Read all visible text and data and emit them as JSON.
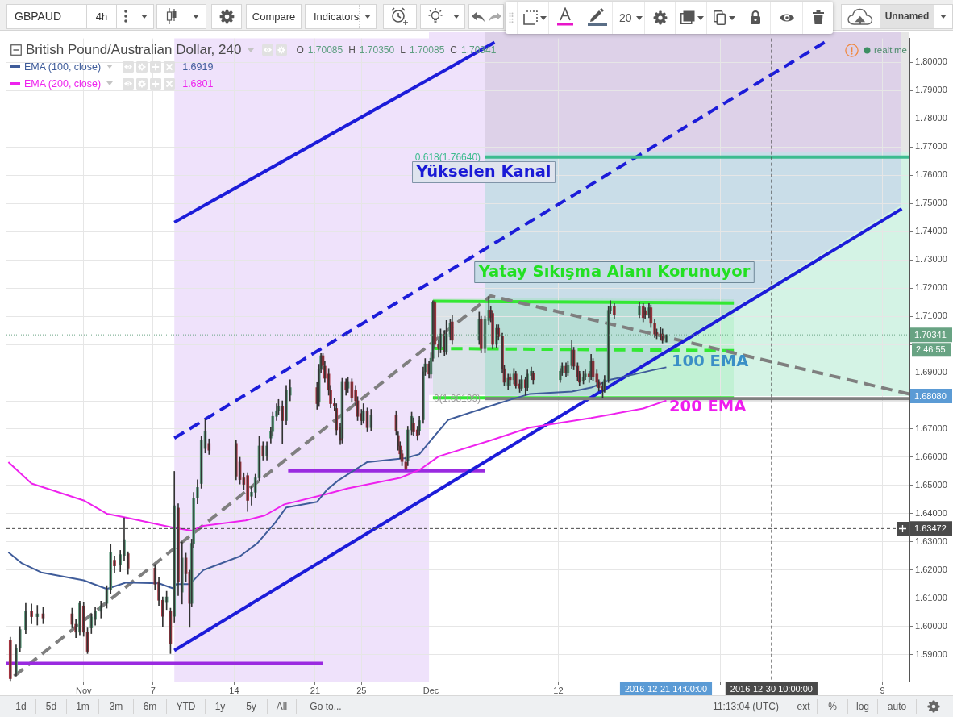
{
  "chart_data": [
    {
      "type": "other",
      "annotations": [
        "GBPAUD",
        "4h",
        "Compare",
        "Indicators",
        "20",
        "Unnamed"
      ]
    },
    {
      "type": "candlestick",
      "title": "British Pound/Australian Dollar, 240",
      "subtitle": "O 1.70085 H 1.70350 L 1.70085 C 1.70341",
      "x": [
        "2016-10-25T16:00",
        "2016-10-26T04:00",
        "2016-10-26T12:00",
        "2016-10-27T00:00",
        "2016-10-27T12:00",
        "2016-10-28T00:00",
        "2016-10-28T12:00",
        "2016-10-31T00:00",
        "2016-10-31T08:00",
        "2016-10-31T16:00",
        "2016-11-01T00:00",
        "2016-11-01T08:00",
        "2016-11-01T16:00",
        "2016-11-02T00:00",
        "2016-11-02T12:00",
        "2016-11-03T00:00",
        "2016-11-03T08:00",
        "2016-11-03T16:00",
        "2016-11-04T04:00",
        "2016-11-04T12:00",
        "2016-11-04T20:00",
        "2016-11-07T04:00",
        "2016-11-07T12:00",
        "2016-11-07T20:00",
        "2016-11-08T04:00",
        "2016-11-08T12:00",
        "2016-11-08T20:00",
        "2016-11-09T04:00",
        "2016-11-09T12:00",
        "2016-11-09T20:00",
        "2016-11-10T04:00",
        "2016-11-10T08:00",
        "2016-11-10T12:00",
        "2016-11-10T20:00",
        "2016-11-11T04:00",
        "2016-11-11T12:00",
        "2016-11-11T20:00",
        "2016-11-14T04:00",
        "2016-11-14T12:00",
        "2016-11-14T20:00",
        "2016-11-15T04:00",
        "2016-11-15T12:00",
        "2016-11-15T20:00",
        "2016-11-16T04:00",
        "2016-11-16T12:00",
        "2016-11-16T20:00",
        "2016-11-17T04:00",
        "2016-11-17T08:00",
        "2016-11-17T16:00",
        "2016-11-17T20:00",
        "2016-11-18T04:00",
        "2016-11-18T12:00",
        "2016-11-18T20:00",
        "2016-11-21T04:00",
        "2016-11-21T08:00",
        "2016-11-21T12:00",
        "2016-11-21T16:00",
        "2016-11-21T20:00",
        "2016-11-22T04:00",
        "2016-11-22T08:00",
        "2016-11-22T16:00",
        "2016-11-22T20:00",
        "2016-11-23T04:00",
        "2016-11-23T08:00",
        "2016-11-23T16:00",
        "2016-11-23T20:00",
        "2016-11-24T04:00",
        "2016-11-24T12:00",
        "2016-11-24T16:00",
        "2016-11-25T00:00",
        "2016-11-25T04:00",
        "2016-11-25T12:00",
        "2016-11-25T20:00",
        "2016-11-28T00:00",
        "2016-11-28T04:00",
        "2016-11-28T08:00",
        "2016-11-28T12:00",
        "2016-11-28T20:00",
        "2016-11-29T00:00",
        "2016-11-29T08:00",
        "2016-11-29T12:00",
        "2016-11-29T20:00",
        "2016-11-30T00:00",
        "2016-11-30T08:00",
        "2016-11-30T12:00",
        "2016-11-30T20:00",
        "2016-12-01T00:00",
        "2016-12-01T04:00",
        "2016-12-01T08:00",
        "2016-12-01T16:00",
        "2016-12-01T20:00",
        "2016-12-02T04:00",
        "2016-12-02T08:00",
        "2016-12-02T16:00",
        "2016-12-02T20:00",
        "2016-12-05T04:00",
        "2016-12-05T08:00",
        "2016-12-05T16:00",
        "2016-12-06T00:00",
        "2016-12-06T04:00",
        "2016-12-06T08:00",
        "2016-12-06T16:00",
        "2016-12-06T20:00",
        "2016-12-07T04:00",
        "2016-12-07T08:00",
        "2016-12-07T16:00",
        "2016-12-07T20:00",
        "2016-12-08T04:00",
        "2016-12-08T08:00",
        "2016-12-08T16:00",
        "2016-12-08T20:00",
        "2016-12-09T04:00",
        "2016-12-09T08:00",
        "2016-12-09T16:00",
        "2016-12-09T20:00",
        "2016-12-12T04:00",
        "2016-12-12T08:00",
        "2016-12-12T16:00",
        "2016-12-12T20:00",
        "2016-12-13T04:00",
        "2016-12-13T08:00",
        "2016-12-13T16:00",
        "2016-12-13T20:00",
        "2016-12-14T04:00",
        "2016-12-14T08:00",
        "2016-12-14T16:00",
        "2016-12-14T20:00",
        "2016-12-15T00:00",
        "2016-12-15T08:00",
        "2016-12-15T12:00",
        "2016-12-15T20:00",
        "2016-12-16T00:00",
        "2016-12-16T08:00",
        "2016-12-16T12:00",
        "2016-12-16T20:00",
        "2016-12-19T00:00",
        "2016-12-19T08:00",
        "2016-12-19T12:00",
        "2016-12-19T20:00",
        "2016-12-20T00:00",
        "2016-12-20T08:00",
        "2016-12-20T12:00",
        "2016-12-20T20:00",
        "2016-12-21T00:00",
        "2016-12-21T08:00"
      ],
      "ohlc": [
        [
          1.5952,
          1.5962,
          1.5808,
          1.5815
        ],
        [
          1.5838,
          1.5935,
          1.5825,
          1.5923
        ],
        [
          1.5923,
          1.6,
          1.591,
          1.5989
        ],
        [
          1.5989,
          1.6082,
          1.5975,
          1.6054
        ],
        [
          1.6054,
          1.608,
          1.601,
          1.6035
        ],
        [
          1.6035,
          1.6075,
          1.6005,
          1.6045
        ],
        [
          1.6045,
          1.607,
          1.601,
          1.603
        ],
        [
          1.6045,
          1.6065,
          1.5995,
          1.6008
        ],
        [
          1.6008,
          1.6025,
          1.596,
          1.598
        ],
        [
          1.598,
          1.609,
          1.597,
          1.6082
        ],
        [
          1.6073,
          1.6085,
          1.5965,
          1.598
        ],
        [
          1.598,
          1.5995,
          1.5904,
          1.5912
        ],
        [
          1.5995,
          1.6045,
          1.5975,
          1.6035
        ],
        [
          1.6025,
          1.607,
          1.6005,
          1.6054
        ],
        [
          1.6054,
          1.609,
          1.603,
          1.6073
        ],
        [
          1.6082,
          1.6145,
          1.6065,
          1.613
        ],
        [
          1.613,
          1.6291,
          1.6115,
          1.6263
        ],
        [
          1.6235,
          1.625,
          1.619,
          1.6215
        ],
        [
          1.622,
          1.627,
          1.6195,
          1.6255
        ],
        [
          1.6252,
          1.6385,
          1.6235,
          1.6308
        ],
        [
          1.6258,
          1.6265,
          1.6185,
          1.6207
        ],
        [
          1.6207,
          1.622,
          1.613,
          1.615
        ],
        [
          1.6159,
          1.6175,
          1.6075,
          1.6093
        ],
        [
          1.6093,
          1.6105,
          1.6,
          1.6036
        ],
        [
          1.6085,
          1.6125,
          1.606,
          1.6105
        ],
        [
          1.6054,
          1.6065,
          1.5904,
          1.594
        ],
        [
          1.6036,
          1.655,
          1.6015,
          1.6428
        ],
        [
          1.642,
          1.6435,
          1.611,
          1.6159
        ],
        [
          1.6122,
          1.63,
          1.608,
          1.6243
        ],
        [
          1.6243,
          1.626,
          1.616,
          1.6187
        ],
        [
          1.6193,
          1.62,
          1.5997,
          1.6082
        ],
        [
          1.6082,
          1.631,
          1.607,
          1.6295
        ],
        [
          1.6295,
          1.6475,
          1.628,
          1.6456
        ],
        [
          1.6456,
          1.652,
          1.6435,
          1.6493
        ],
        [
          1.6507,
          1.6675,
          1.649,
          1.666
        ],
        [
          1.6631,
          1.6734,
          1.6615,
          1.6691
        ],
        [
          1.6649,
          1.6665,
          1.661,
          1.6625
        ],
        [
          1.6649,
          1.666,
          1.652,
          1.6533
        ],
        [
          1.6583,
          1.66,
          1.6505,
          1.6521
        ],
        [
          1.6527,
          1.6545,
          1.6485,
          1.6504
        ],
        [
          1.6535,
          1.6545,
          1.6408,
          1.6447
        ],
        [
          1.6462,
          1.6495,
          1.643,
          1.6476
        ],
        [
          1.6476,
          1.654,
          1.6455,
          1.6527
        ],
        [
          1.6527,
          1.6675,
          1.6515,
          1.664
        ],
        [
          1.664,
          1.6655,
          1.659,
          1.6606
        ],
        [
          1.6606,
          1.6655,
          1.659,
          1.664
        ],
        [
          1.6668,
          1.6705,
          1.665,
          1.6691
        ],
        [
          1.6691,
          1.676,
          1.6675,
          1.6745
        ],
        [
          1.6745,
          1.679,
          1.673,
          1.6765
        ],
        [
          1.6765,
          1.6805,
          1.675,
          1.6782
        ],
        [
          1.6782,
          1.68,
          1.6649,
          1.673
        ],
        [
          1.673,
          1.6855,
          1.6715,
          1.6838
        ],
        [
          1.682,
          1.6875,
          1.68,
          1.6847
        ],
        [
          1.6847,
          1.6865,
          1.677,
          1.679
        ],
        [
          1.6795,
          1.693,
          1.678,
          1.6914
        ],
        [
          1.6914,
          1.6968,
          1.69,
          1.696
        ],
        [
          1.696,
          1.6968,
          1.691,
          1.6925
        ],
        [
          1.6923,
          1.694,
          1.6865,
          1.688
        ],
        [
          1.6895,
          1.6915,
          1.682,
          1.6838
        ],
        [
          1.6838,
          1.6855,
          1.6775,
          1.679
        ],
        [
          1.679,
          1.681,
          1.6765,
          1.6782
        ],
        [
          1.6773,
          1.679,
          1.668,
          1.6697
        ],
        [
          1.6706,
          1.672,
          1.6645,
          1.666
        ],
        [
          1.6668,
          1.688,
          1.665,
          1.6866
        ],
        [
          1.6866,
          1.6878,
          1.682,
          1.6838
        ],
        [
          1.6845,
          1.6885,
          1.683,
          1.6866
        ],
        [
          1.6866,
          1.6878,
          1.6795,
          1.681
        ],
        [
          1.6838,
          1.6855,
          1.6785,
          1.68
        ],
        [
          1.68,
          1.6815,
          1.673,
          1.6745
        ],
        [
          1.6755,
          1.677,
          1.6715,
          1.673
        ],
        [
          1.673,
          1.679,
          1.672,
          1.6765
        ],
        [
          1.6762,
          1.6775,
          1.669,
          1.6705
        ],
        [
          1.6705,
          1.677,
          1.6695,
          1.675
        ],
        [
          1.675,
          1.6765,
          1.668,
          1.6695
        ],
        [
          1.6677,
          1.669,
          1.6625,
          1.664
        ],
        [
          1.664,
          1.6655,
          1.6595,
          1.6612
        ],
        [
          1.6612,
          1.6625,
          1.657,
          1.6585
        ],
        [
          1.6583,
          1.66,
          1.6555,
          1.6561
        ],
        [
          1.6589,
          1.671,
          1.657,
          1.6697
        ],
        [
          1.6697,
          1.676,
          1.668,
          1.6745
        ],
        [
          1.672,
          1.674,
          1.6675,
          1.669
        ],
        [
          1.6697,
          1.671,
          1.666,
          1.6678
        ],
        [
          1.6695,
          1.6745,
          1.668,
          1.673
        ],
        [
          1.6733,
          1.692,
          1.672,
          1.6903
        ],
        [
          1.6903,
          1.695,
          1.689,
          1.6931
        ],
        [
          1.6931,
          1.694,
          1.688,
          1.6895
        ],
        [
          1.6895,
          1.697,
          1.688,
          1.6951
        ],
        [
          1.6951,
          1.7155,
          1.694,
          1.715
        ],
        [
          1.715,
          1.7155,
          1.6985,
          1.7
        ],
        [
          1.7,
          1.7015,
          1.6955,
          1.6985
        ],
        [
          1.6985,
          1.7055,
          1.697,
          1.7037
        ],
        [
          1.7037,
          1.705,
          1.696,
          1.6975
        ],
        [
          1.6975,
          1.7085,
          1.6965,
          1.7037
        ],
        [
          1.7028,
          1.709,
          1.7015,
          1.7074
        ],
        [
          1.708,
          1.7105,
          1.7,
          1.7015
        ],
        [
          1.7015,
          1.7115,
          1.7,
          1.709
        ],
        [
          1.709,
          1.71,
          1.697,
          1.6985
        ],
        [
          1.6985,
          1.71,
          1.697,
          1.709
        ],
        [
          1.7085,
          1.717,
          1.707,
          1.7122
        ],
        [
          1.7122,
          1.7135,
          1.708,
          1.7095
        ],
        [
          1.711,
          1.712,
          1.6985,
          1.7
        ],
        [
          1.7,
          1.707,
          1.699,
          1.7057
        ],
        [
          1.7057,
          1.707,
          1.7015,
          1.7028
        ],
        [
          1.7028,
          1.704,
          1.69,
          1.6914
        ],
        [
          1.6914,
          1.6925,
          1.6855,
          1.6866
        ],
        [
          1.6855,
          1.6895,
          1.684,
          1.688
        ],
        [
          1.6885,
          1.6895,
          1.6855,
          1.6875
        ],
        [
          1.6875,
          1.6915,
          1.686,
          1.6895
        ],
        [
          1.6895,
          1.6905,
          1.6845,
          1.6855
        ],
        [
          1.686,
          1.6875,
          1.683,
          1.6845
        ],
        [
          1.6845,
          1.689,
          1.6835,
          1.6875
        ],
        [
          1.6875,
          1.6885,
          1.682,
          1.6847
        ],
        [
          1.6847,
          1.691,
          1.6835,
          1.6895
        ],
        [
          1.689,
          1.692,
          1.6875,
          1.6905
        ],
        [
          1.6898,
          1.6905,
          1.686,
          1.6875
        ],
        [
          1.6875,
          1.6915,
          1.6865,
          1.6905
        ],
        [
          1.69,
          1.6935,
          1.689,
          1.6923
        ],
        [
          1.6923,
          1.6935,
          1.6885,
          1.69
        ],
        [
          1.69,
          1.694,
          1.689,
          1.6925
        ],
        [
          1.6925,
          1.7015,
          1.6915,
          1.698
        ],
        [
          1.698,
          1.699,
          1.691,
          1.6923
        ],
        [
          1.6923,
          1.6935,
          1.687,
          1.6885
        ],
        [
          1.6895,
          1.6905,
          1.6855,
          1.6866
        ],
        [
          1.687,
          1.6905,
          1.686,
          1.6885
        ],
        [
          1.6885,
          1.691,
          1.6875,
          1.6895
        ],
        [
          1.6895,
          1.6905,
          1.6865,
          1.6885
        ],
        [
          1.6887,
          1.6965,
          1.6875,
          1.6942
        ],
        [
          1.6942,
          1.695,
          1.687,
          1.6885
        ],
        [
          1.6895,
          1.691,
          1.685,
          1.6866
        ],
        [
          1.6866,
          1.6875,
          1.6835,
          1.6847
        ],
        [
          1.6852,
          1.6865,
          1.6812,
          1.6838
        ],
        [
          1.6842,
          1.689,
          1.683,
          1.6875
        ],
        [
          1.6875,
          1.7135,
          1.6865,
          1.7121
        ],
        [
          1.7121,
          1.7155,
          1.711,
          1.7135
        ],
        [
          1.7135,
          1.7145,
          1.709,
          1.7105
        ],
        [
          1.7105,
          1.715,
          1.7095,
          1.7135
        ],
        [
          1.7135,
          1.7145,
          1.708,
          1.7095
        ],
        [
          1.712,
          1.713,
          1.709,
          1.7105
        ],
        [
          1.7105,
          1.7145,
          1.7095,
          1.713
        ],
        [
          1.713,
          1.714,
          1.706,
          1.7075
        ],
        [
          1.7075,
          1.709,
          1.7025,
          1.7037
        ],
        [
          1.7042,
          1.7055,
          1.702,
          1.7032
        ],
        [
          1.7028,
          1.706,
          1.7015,
          1.7037
        ],
        [
          1.7037,
          1.7055,
          1.7005,
          1.7014
        ],
        [
          1.70085,
          1.7035,
          1.70085,
          1.70341
        ]
      ],
      "color": "#333333",
      "colors": [
        "#a8343f",
        "#5b9b7c",
        "#5b9b7c",
        "#5b9b7c",
        "#a8343f",
        "#5b9b7c",
        "#a8343f",
        "#a8343f",
        "#a8343f",
        "#5b9b7c",
        "#a8343f",
        "#a8343f",
        "#5b9b7c",
        "#5b9b7c",
        "#5b9b7c",
        "#5b9b7c",
        "#5b9b7c",
        "#a8343f",
        "#5b9b7c",
        "#5b9b7c",
        "#a8343f",
        "#a8343f",
        "#a8343f",
        "#a8343f",
        "#5b9b7c",
        "#a8343f",
        "#5b9b7c",
        "#a8343f",
        "#5b9b7c",
        "#a8343f",
        "#a8343f",
        "#5b9b7c",
        "#5b9b7c",
        "#5b9b7c",
        "#5b9b7c",
        "#5b9b7c",
        "#a8343f",
        "#a8343f",
        "#a8343f",
        "#a8343f",
        "#a8343f",
        "#5b9b7c",
        "#5b9b7c",
        "#5b9b7c",
        "#a8343f",
        "#5b9b7c",
        "#5b9b7c",
        "#5b9b7c",
        "#5b9b7c",
        "#5b9b7c",
        "#a8343f",
        "#5b9b7c",
        "#5b9b7c",
        "#a8343f",
        "#5b9b7c",
        "#5b9b7c",
        "#a8343f",
        "#a8343f",
        "#a8343f",
        "#a8343f",
        "#a8343f",
        "#a8343f",
        "#a8343f",
        "#5b9b7c",
        "#a8343f",
        "#5b9b7c",
        "#a8343f",
        "#a8343f",
        "#a8343f",
        "#a8343f",
        "#5b9b7c",
        "#a8343f",
        "#5b9b7c",
        "#a8343f",
        "#a8343f",
        "#a8343f",
        "#a8343f",
        "#a8343f",
        "#5b9b7c",
        "#5b9b7c",
        "#a8343f",
        "#a8343f",
        "#5b9b7c",
        "#5b9b7c",
        "#5b9b7c",
        "#a8343f",
        "#5b9b7c",
        "#5b9b7c",
        "#a8343f",
        "#a8343f",
        "#5b9b7c",
        "#a8343f",
        "#5b9b7c",
        "#5b9b7c",
        "#a8343f",
        "#5b9b7c",
        "#a8343f",
        "#5b9b7c",
        "#5b9b7c",
        "#a8343f",
        "#a8343f",
        "#5b9b7c",
        "#a8343f",
        "#a8343f",
        "#a8343f",
        "#5b9b7c",
        "#a8343f",
        "#5b9b7c",
        "#a8343f",
        "#a8343f",
        "#5b9b7c",
        "#a8343f",
        "#5b9b7c",
        "#5b9b7c",
        "#a8343f",
        "#5b9b7c",
        "#5b9b7c",
        "#a8343f",
        "#5b9b7c",
        "#5b9b7c",
        "#a8343f",
        "#a8343f",
        "#a8343f",
        "#5b9b7c",
        "#5b9b7c",
        "#a8343f",
        "#5b9b7c",
        "#a8343f",
        "#a8343f",
        "#a8343f",
        "#a8343f",
        "#5b9b7c",
        "#5b9b7c",
        "#5b9b7c",
        "#a8343f",
        "#5b9b7c",
        "#a8343f",
        "#a8343f",
        "#5b9b7c",
        "#a8343f",
        "#a8343f",
        "#a8343f",
        "#5b9b7c",
        "#a8343f",
        "#5b9b7c"
      ],
      "xlim": [
        "2016-10-25T08:00",
        "2017-01-11T08:00"
      ],
      "xticks": [
        {
          "value": "2016-11-01",
          "label": "Nov"
        },
        {
          "value": "2016-11-07",
          "label": "7"
        },
        {
          "value": "2016-11-14",
          "label": "14"
        },
        {
          "value": "2016-11-21",
          "label": "21"
        },
        {
          "value": "2016-11-25",
          "label": "25"
        },
        {
          "value": "2016-12-01",
          "label": "Dec"
        },
        {
          "value": "2016-12-12",
          "label": "12"
        },
        {
          "value": "2016-12-19",
          "label": null
        },
        {
          "value": "2016-12-26",
          "label": null
        },
        {
          "value": "2017-01-02",
          "label": null
        },
        {
          "value": "2017-01-09",
          "label": "9"
        }
      ],
      "ylim": [
        1.5805,
        1.8085
      ],
      "yticks": [
        {
          "value": 1.59,
          "label": "1.59000"
        },
        {
          "value": 1.6,
          "label": "1.60000"
        },
        {
          "value": 1.61,
          "label": "1.61000"
        },
        {
          "value": 1.62,
          "label": "1.62000"
        },
        {
          "value": 1.63,
          "label": "1.63000"
        },
        {
          "value": 1.64,
          "label": "1.64000"
        },
        {
          "value": 1.65,
          "label": "1.65000"
        },
        {
          "value": 1.66,
          "label": "1.66000"
        },
        {
          "value": 1.67,
          "label": "1.67000"
        },
        {
          "value": 1.68,
          "label": null
        },
        {
          "value": 1.69,
          "label": "1.69000"
        },
        {
          "value": 1.7,
          "label": null
        },
        {
          "value": 1.71,
          "label": "1.71000"
        },
        {
          "value": 1.72,
          "label": "1.72000"
        },
        {
          "value": 1.73,
          "label": "1.73000"
        },
        {
          "value": 1.74,
          "label": "1.74000"
        },
        {
          "value": 1.75,
          "label": "1.75000"
        },
        {
          "value": 1.76,
          "label": "1.76000"
        },
        {
          "value": 1.77,
          "label": "1.77000"
        },
        {
          "value": 1.78,
          "label": "1.78000"
        },
        {
          "value": 1.79,
          "label": "1.79000"
        },
        {
          "value": 1.8,
          "label": "1.80000"
        }
      ],
      "grid": true,
      "legend": "top left",
      "bands": [
        {
          "axis": "x",
          "from": "2016-11-08T20:00",
          "to": "2016-11-30T20:00",
          "color": "#efe2fb"
        }
      ],
      "series": [
        {
          "name": "EMA (100, close)",
          "type": "line",
          "color": "#3f5c9a",
          "x": [
            "2016-10-25T12:00",
            "2016-10-26T16:00",
            "2016-10-28T08:00",
            "2016-11-01T00:00",
            "2016-11-03T00:00",
            "2016-11-04T16:00",
            "2016-11-07T12:00",
            "2016-11-08T16:00",
            "2016-11-09T00:00",
            "2016-11-10T04:00",
            "2016-11-11T08:00",
            "2016-11-14T12:00",
            "2016-11-16T00:00",
            "2016-11-17T12:00",
            "2016-11-18T12:00",
            "2016-11-21T04:00",
            "2016-11-22T00:00",
            "2016-11-23T00:00",
            "2016-11-25T12:00",
            "2016-11-28T20:00",
            "2016-11-30T00:00",
            "2016-12-01T08:00",
            "2016-12-02T12:00",
            "2016-12-06T04:00",
            "2016-12-07T20:00",
            "2016-12-09T12:00",
            "2016-12-13T04:00",
            "2016-12-14T20:00",
            "2016-12-16T12:00",
            "2016-12-20T04:00",
            "2016-12-21T08:00"
          ],
          "values": [
            1.6263,
            1.6224,
            1.6192,
            1.6164,
            1.6133,
            1.6156,
            1.6153,
            1.6136,
            1.615,
            1.615,
            1.62,
            1.6249,
            1.6295,
            1.6366,
            1.6422,
            1.6442,
            1.6484,
            1.6518,
            1.6583,
            1.6597,
            1.6611,
            1.6677,
            1.6733,
            1.6782,
            1.6804,
            1.6824,
            1.6833,
            1.6847,
            1.6875,
            1.6909,
            1.6919
          ]
        },
        {
          "name": "EMA (200, close)",
          "type": "line",
          "color": "#ee22ee",
          "x": [
            "2016-10-25T12:00",
            "2016-10-27T12:00",
            "2016-11-01T00:00",
            "2016-11-03T00:00",
            "2016-11-04T20:00",
            "2016-11-08T16:00",
            "2016-11-10T08:00",
            "2016-11-11T08:00",
            "2016-11-15T00:00",
            "2016-11-16T16:00",
            "2016-11-18T08:00",
            "2016-11-22T00:00",
            "2016-11-23T20:00",
            "2016-11-28T08:00",
            "2016-11-30T00:00",
            "2016-12-01T16:00",
            "2016-12-06T04:00",
            "2016-12-09T12:00",
            "2016-12-14T20:00",
            "2016-12-19T08:00",
            "2016-12-21T08:00"
          ],
          "values": [
            1.6583,
            1.6507,
            1.6447,
            1.64,
            1.6385,
            1.6351,
            1.634,
            1.6357,
            1.6376,
            1.6394,
            1.6433,
            1.647,
            1.649,
            1.6527,
            1.6555,
            1.6603,
            1.666,
            1.6705,
            1.6739,
            1.6773,
            1.6801
          ]
        },
        {
          "type": "line",
          "color": "#3dbb8f",
          "x": [
            "2016-12-05T16:00",
            "2017-01-11T08:00"
          ],
          "values": [
            1.7664,
            1.7664
          ]
        },
        {
          "type": "line",
          "color": "#7f7f7f",
          "x": [
            "2016-12-05T16:00",
            "2017-01-11T08:00"
          ],
          "values": [
            1.6808,
            1.6808
          ]
        },
        {
          "type": "line",
          "color": "#1c1cd9",
          "x": [
            "2016-11-08T20:00",
            "2016-12-06T12:00"
          ],
          "values": [
            1.7433,
            1.8071
          ]
        },
        {
          "type": "line",
          "color": "#1c1cd9",
          "line_style": "dashed",
          "x": [
            "2016-11-08T20:00",
            "2017-01-04T00:00"
          ],
          "values": [
            1.6668,
            1.8071
          ]
        },
        {
          "type": "line",
          "color": "#1c1cd9",
          "x": [
            "2016-11-08T20:00",
            "2017-01-10T16:00"
          ],
          "values": [
            1.5915,
            1.7481
          ]
        },
        {
          "type": "line",
          "color": "#9a2ae0",
          "x": [
            "2016-10-25T08:00",
            "2016-11-21T16:00"
          ],
          "values": [
            1.5869,
            1.5869
          ]
        },
        {
          "type": "line",
          "color": "#9a2ae0",
          "x": [
            "2016-11-18T16:00",
            "2016-12-05T16:00"
          ],
          "values": [
            1.6552,
            1.6552
          ]
        },
        {
          "type": "line",
          "color": "#7f7f7f",
          "line_style": "dashed",
          "x": [
            "2016-10-26T00:00",
            "2016-12-06T04:00",
            "2017-01-11T08:00"
          ],
          "values": [
            1.5824,
            1.7172,
            1.6824
          ]
        },
        {
          "type": "line",
          "color": "#33e833",
          "x": [
            "2016-12-01T04:00",
            "2016-12-27T04:00"
          ],
          "values": [
            1.7153,
            1.7147
          ]
        },
        {
          "type": "line",
          "color": "#33e833",
          "line_style": "dashed",
          "x": [
            "2016-12-01T04:00",
            "2016-12-27T04:00"
          ],
          "values": [
            1.6986,
            1.6978
          ]
        },
        {
          "type": "line",
          "color": "#33e833",
          "x": [
            "2016-12-01T04:00",
            "2016-12-27T04:00"
          ],
          "values": [
            1.68109,
            1.68109
          ]
        }
      ],
      "ref_lines": [
        {
          "axis": "y",
          "value": 1.70341,
          "label": "1.70341",
          "color": "#68a383",
          "line_style": "dotted"
        },
        {
          "axis": "y",
          "value": 1.63472,
          "label": "1.63472",
          "color": "#4a4a4a",
          "line_style": "dashed"
        },
        {
          "axis": "x",
          "value": "2016-12-30T10:00",
          "label": "2016-12-30 10:00:00",
          "color": "#4a4a4a",
          "line_style": "dashed"
        }
      ],
      "annotations": [
        "1.6919",
        "1.6801",
        "realtime",
        "2:46:55",
        "Yükselen Kanal",
        "Yatay Sıkışma Alanı Korunuyor",
        "100 EMA",
        "200 EMA",
        "2016-12-21 14:00:00",
        "1.68080",
        {
          "text": "0.618(1.76640)",
          "x": "2016-12-05T12:00",
          "y": 1.7664
        },
        {
          "text": "0(1.68109)",
          "x": "2016-12-05T12:00",
          "y": 1.68109
        }
      ]
    },
    {
      "type": "other",
      "annotations": [
        "1d",
        "5d",
        "1m",
        "3m",
        "6m",
        "YTD",
        "1y",
        "5y",
        "All",
        "Go to...",
        "11:13:04 (UTC)",
        "ext",
        "%",
        "log",
        "auto"
      ]
    }
  ]
}
